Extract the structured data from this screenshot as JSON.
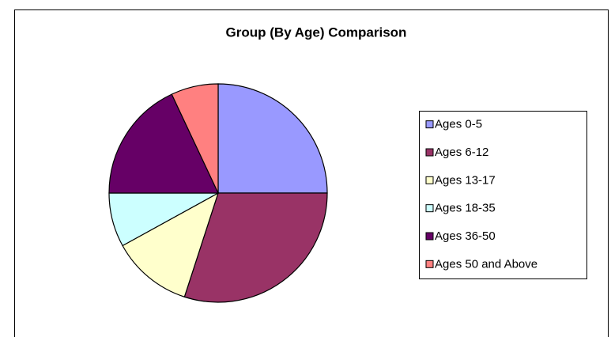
{
  "chart_data": {
    "type": "pie",
    "title": "Group (By Age) Comparison",
    "categories": [
      "Ages 0-5",
      "Ages 6-12",
      "Ages 13-17",
      "Ages 18-35",
      "Ages 36-50",
      "Ages 50 and Above"
    ],
    "values": [
      25,
      30,
      12,
      8,
      18,
      7
    ],
    "colors": [
      "#9999ff",
      "#993366",
      "#ffffcc",
      "#ccffff",
      "#660066",
      "#ff8080"
    ],
    "legend": "right"
  }
}
